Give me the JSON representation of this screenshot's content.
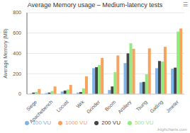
{
  "chart_data": {
    "type": "bar",
    "title": "Average Memory usage – Medium-latency tests",
    "ylabel": "Average Memory (MB)",
    "categories": [
      "Siege",
      "Apachebench",
      "Locust",
      "Wrk",
      "Grinder",
      "Boom",
      "Artillery",
      "Tsung",
      "Gatling",
      "Jmeter"
    ],
    "series": [
      {
        "name": "100 VU",
        "color": "#7cb5ec",
        "values": [
          5,
          10,
          25,
          15,
          255,
          40,
          305,
          115,
          255,
          250
        ]
      },
      {
        "name": "200 VU",
        "color": "#434348",
        "values": [
          15,
          15,
          35,
          20,
          265,
          75,
          400,
          120,
          325,
          260
        ]
      },
      {
        "name": "500 VU",
        "color": "#90ed7d",
        "values": [
          20,
          30,
          45,
          55,
          285,
          215,
          500,
          195,
          320,
          615
        ]
      },
      {
        "name": "1000 VU",
        "color": "#f7a35c",
        "values": [
          50,
          75,
          90,
          175,
          355,
          380,
          445,
          450,
          465,
          645
        ]
      }
    ],
    "ylim": [
      0,
      800
    ],
    "yticks": [
      0,
      200,
      400,
      600,
      800
    ],
    "grid": true,
    "legend": "bottom",
    "annotations": [
      "Highcharts.com",
      "☰"
    ]
  }
}
